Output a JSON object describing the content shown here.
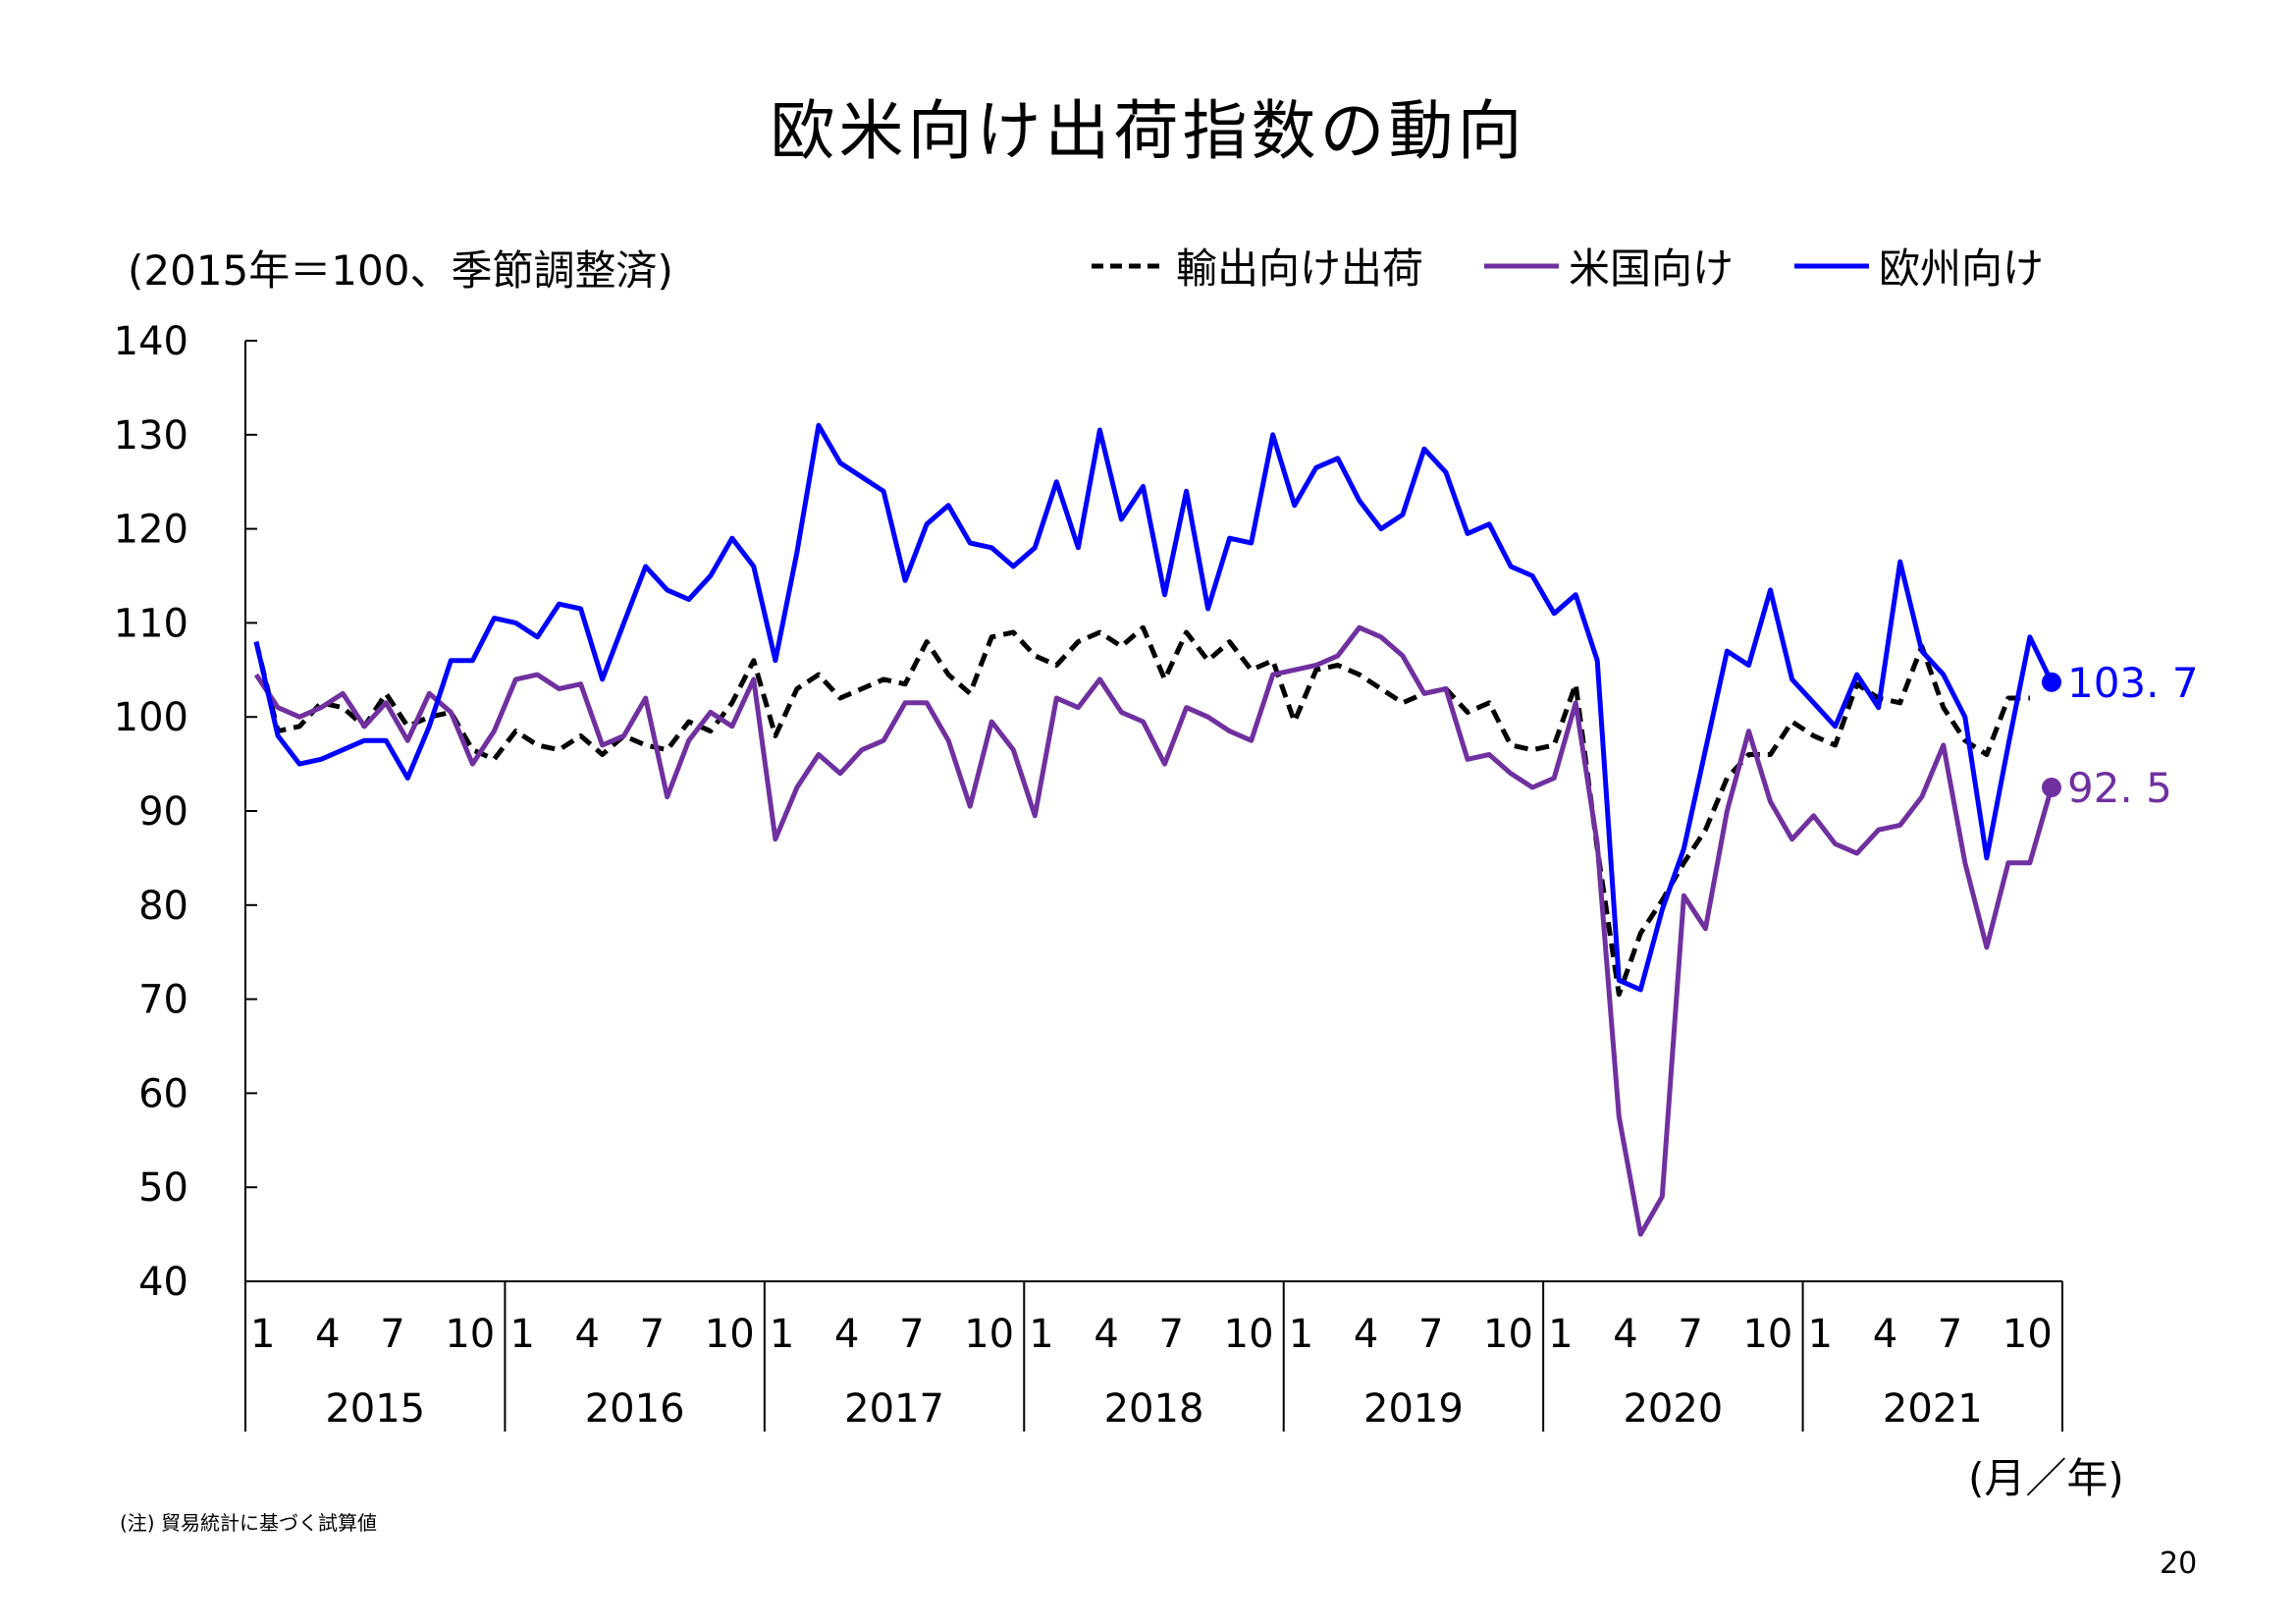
{
  "title": "欧米向け出荷指数の動向",
  "unit_note": "(2015年＝100、季節調整済)",
  "month_year_label": "(月／年)",
  "footnote": "(注) 貿易統計に基づく試算値",
  "page_number": "20",
  "chart_data": {
    "type": "line",
    "ylim": [
      40,
      140
    ],
    "yticks": [
      140,
      130,
      120,
      110,
      100,
      90,
      80,
      70,
      60,
      50,
      40
    ],
    "month_ticks": [
      {
        "index": 0,
        "label": "1"
      },
      {
        "index": 3,
        "label": "4"
      },
      {
        "index": 6,
        "label": "7"
      },
      {
        "index": 9,
        "label": "10"
      },
      {
        "index": 12,
        "label": "1"
      },
      {
        "index": 15,
        "label": "4"
      },
      {
        "index": 18,
        "label": "7"
      },
      {
        "index": 21,
        "label": "10"
      },
      {
        "index": 24,
        "label": "1"
      },
      {
        "index": 27,
        "label": "4"
      },
      {
        "index": 30,
        "label": "7"
      },
      {
        "index": 33,
        "label": "10"
      },
      {
        "index": 36,
        "label": "1"
      },
      {
        "index": 39,
        "label": "4"
      },
      {
        "index": 42,
        "label": "7"
      },
      {
        "index": 45,
        "label": "10"
      },
      {
        "index": 48,
        "label": "1"
      },
      {
        "index": 51,
        "label": "4"
      },
      {
        "index": 54,
        "label": "7"
      },
      {
        "index": 57,
        "label": "10"
      },
      {
        "index": 60,
        "label": "1"
      },
      {
        "index": 63,
        "label": "4"
      },
      {
        "index": 66,
        "label": "7"
      },
      {
        "index": 69,
        "label": "10"
      },
      {
        "index": 72,
        "label": "1"
      },
      {
        "index": 75,
        "label": "4"
      },
      {
        "index": 78,
        "label": "7"
      },
      {
        "index": 81,
        "label": "10"
      }
    ],
    "years": [
      "2015",
      "2016",
      "2017",
      "2018",
      "2019",
      "2020",
      "2021"
    ],
    "grid": false,
    "legend_position": "top-right",
    "series": [
      {
        "name": "輸出向け出荷",
        "color": "#000000",
        "dash": true,
        "values": [
          108,
          98.5,
          99,
          101.5,
          101,
          99,
          102.5,
          99,
          100,
          100.5,
          96.5,
          95.5,
          98.5,
          97,
          96.5,
          98,
          96,
          98,
          97,
          96.5,
          99.5,
          98.5,
          101.5,
          106,
          98,
          103,
          104.5,
          102,
          103,
          104,
          103.5,
          108,
          104.5,
          102.5,
          108.5,
          109,
          106.5,
          105.5,
          108,
          109,
          107.5,
          109.5,
          104,
          109,
          106,
          108,
          105,
          106,
          99.5,
          105,
          105.5,
          104.5,
          103,
          101.5,
          102.5,
          103,
          100.5,
          101.5,
          97,
          96.5,
          97,
          103.5,
          86,
          70.5,
          77,
          80.5,
          84.5,
          88,
          93.5,
          96,
          96,
          99.5,
          98,
          97,
          103.5,
          102,
          101.5,
          107.5,
          101,
          97.5,
          96,
          102,
          102
        ]
      },
      {
        "name": "米国向け",
        "color": "#7030a0",
        "dash": false,
        "values": [
          104.5,
          101,
          100,
          101,
          102.5,
          99,
          101.5,
          97.5,
          102.5,
          100.5,
          95,
          98.5,
          104,
          104.5,
          103,
          103.5,
          97,
          98,
          102,
          91.5,
          97.5,
          100.5,
          99,
          104,
          87,
          92.5,
          96,
          94,
          96.5,
          97.5,
          101.5,
          101.5,
          97.5,
          90.5,
          99.5,
          96.5,
          89.5,
          102,
          101,
          104,
          100.5,
          99.5,
          95,
          101,
          100,
          98.5,
          97.5,
          104.5,
          105,
          105.5,
          106.5,
          109.5,
          108.5,
          106.5,
          102.5,
          103,
          95.5,
          96,
          94,
          92.5,
          93.5,
          101.5,
          86.5,
          57.5,
          45,
          49,
          81,
          77.5,
          90,
          98.5,
          91,
          87,
          89.5,
          86.5,
          85.5,
          88,
          88.5,
          91.5,
          97,
          84.5,
          75.5,
          84.5,
          84.5,
          92.5
        ]
      },
      {
        "name": "欧州向け",
        "color": "#0000ff",
        "dash": false,
        "values": [
          108,
          98,
          95,
          95.5,
          96.5,
          97.5,
          97.5,
          93.5,
          99,
          106,
          106,
          110.5,
          110,
          108.5,
          112,
          111.5,
          104,
          110,
          116,
          113.5,
          112.5,
          115,
          119,
          116,
          106,
          117.5,
          131,
          127,
          125.5,
          124,
          114.5,
          120.5,
          122.5,
          118.5,
          118,
          116,
          118,
          125,
          118,
          130.5,
          121,
          124.5,
          113,
          124,
          111.5,
          119,
          118.5,
          130,
          122.5,
          126.5,
          127.5,
          123,
          120,
          121.5,
          128.5,
          126,
          119.5,
          120.5,
          116,
          115,
          111,
          113,
          106,
          72,
          71,
          79.5,
          86,
          96.5,
          107,
          105.5,
          113.5,
          104,
          101.5,
          99,
          104.5,
          101,
          116.5,
          107,
          104.5,
          100,
          85,
          97,
          108.5,
          103.7
        ]
      }
    ],
    "end_labels": [
      {
        "series": "欧州向け",
        "text": "103. 7",
        "color": "#0000ff"
      },
      {
        "series": "米国向け",
        "text": "92. 5",
        "color": "#7030a0"
      }
    ]
  }
}
